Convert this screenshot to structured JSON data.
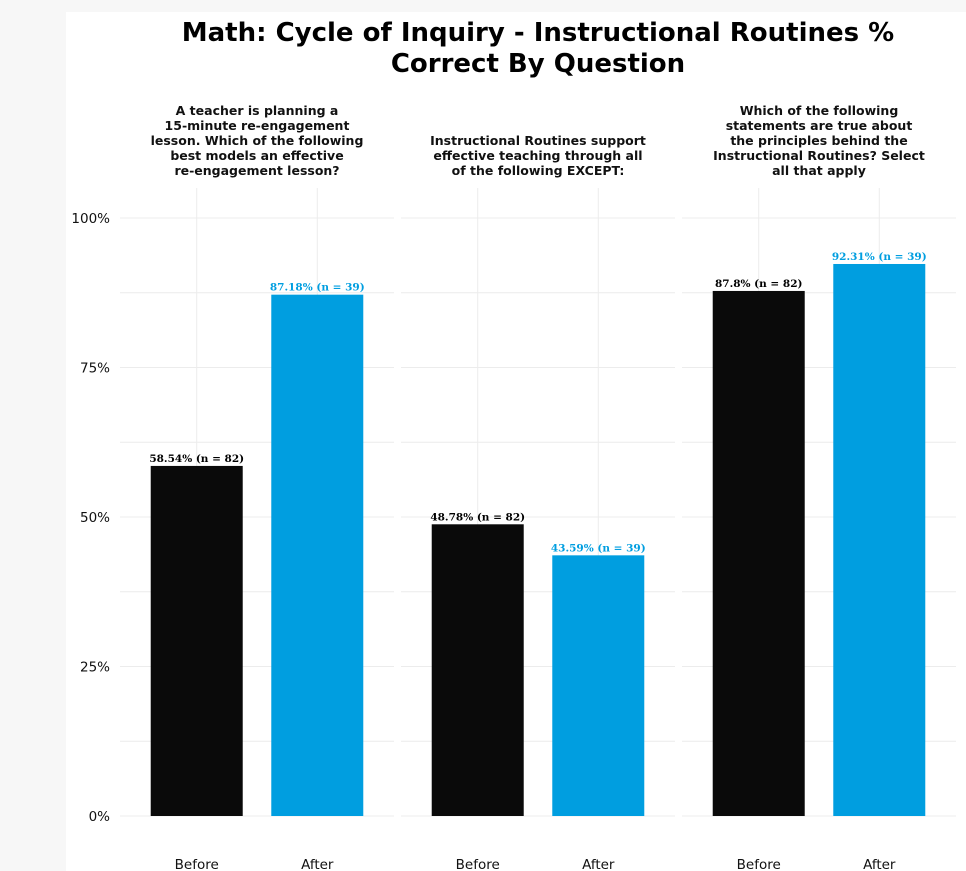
{
  "chart_data": {
    "type": "bar",
    "title_lines": [
      "Math: Cycle of Inquiry - Instructional Routines %",
      "Correct By Question"
    ],
    "ylim": [
      0,
      100
    ],
    "y_ticks": [
      0,
      25,
      50,
      75,
      100
    ],
    "y_tick_labels": [
      "0%",
      "25%",
      "50%",
      "75%",
      "100%"
    ],
    "categories": [
      "Before",
      "After"
    ],
    "colors": {
      "Before": "#0a0a0a",
      "After": "#009ee0"
    },
    "grid": true,
    "legend": "none",
    "facets": [
      {
        "title_lines": [
          "A teacher is planning a",
          "15-minute re-engagement",
          "lesson. Which of the following",
          "best models an effective",
          "re-engagement lesson?"
        ],
        "values": [
          58.54,
          87.18
        ],
        "labels": [
          "58.54% (n = 82)",
          "87.18% (n = 39)"
        ]
      },
      {
        "title_lines": [
          "Instructional Routines support",
          "effective teaching through all",
          "of the following EXCEPT:"
        ],
        "values": [
          48.78,
          43.59
        ],
        "labels": [
          "48.78% (n = 82)",
          "43.59% (n = 39)"
        ]
      },
      {
        "title_lines": [
          "Which of the following",
          "statements are true about",
          "the principles behind the",
          "Instructional Routines? Select",
          "all that apply"
        ],
        "values": [
          87.8,
          92.31
        ],
        "labels": [
          "87.8% (n = 82)",
          "92.31% (n = 39)"
        ]
      }
    ]
  }
}
